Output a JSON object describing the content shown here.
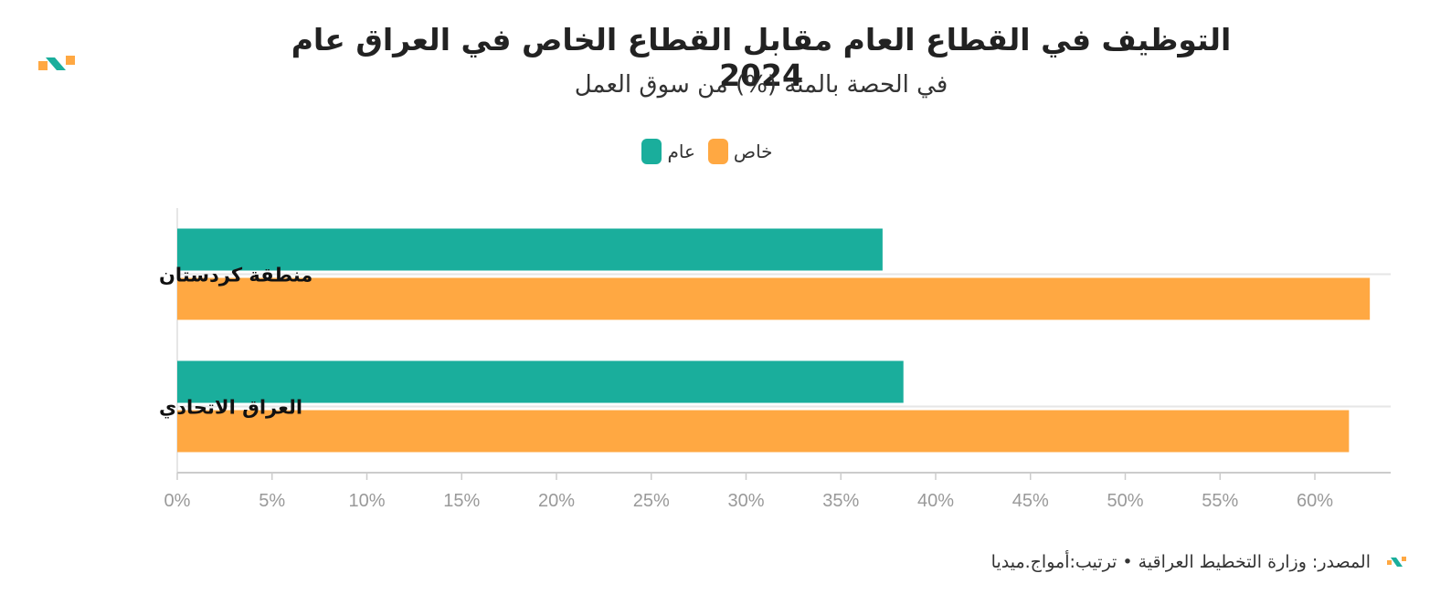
{
  "title": "التوظيف في القطاع العام مقابل القطاع الخاص في العراق عام 2024",
  "subtitle": "في الحصة بالمئة (%) من سوق العمل",
  "source": "المصدر: وزارة التخطيط العراقية • ترتيب:أمواج.ميديا",
  "colors": {
    "public": "#1AAE9C",
    "private": "#FFA842",
    "grid": "#e6e6e6",
    "axis": "#cccccc",
    "tick": "#999999"
  },
  "chart_data": {
    "type": "bar",
    "orientation": "horizontal",
    "categories": [
      "منطقة كردستان",
      "العراق الاتحادي"
    ],
    "series": [
      {
        "name": "عام",
        "values": [
          37.2,
          38.3
        ],
        "color": "#1AAE9C"
      },
      {
        "name": "خاص",
        "values": [
          62.9,
          61.8
        ],
        "color": "#FFA842"
      }
    ],
    "xlim": [
      0,
      64
    ],
    "ticks": [
      0,
      5,
      10,
      15,
      20,
      25,
      30,
      35,
      40,
      45,
      50,
      55,
      60
    ],
    "tick_labels": [
      "0%",
      "5%",
      "10%",
      "15%",
      "20%",
      "25%",
      "30%",
      "35%",
      "40%",
      "45%",
      "50%",
      "55%",
      "60%"
    ],
    "legend": [
      "خاص",
      "عام"
    ],
    "legend_position": "top-center",
    "grid": true
  }
}
